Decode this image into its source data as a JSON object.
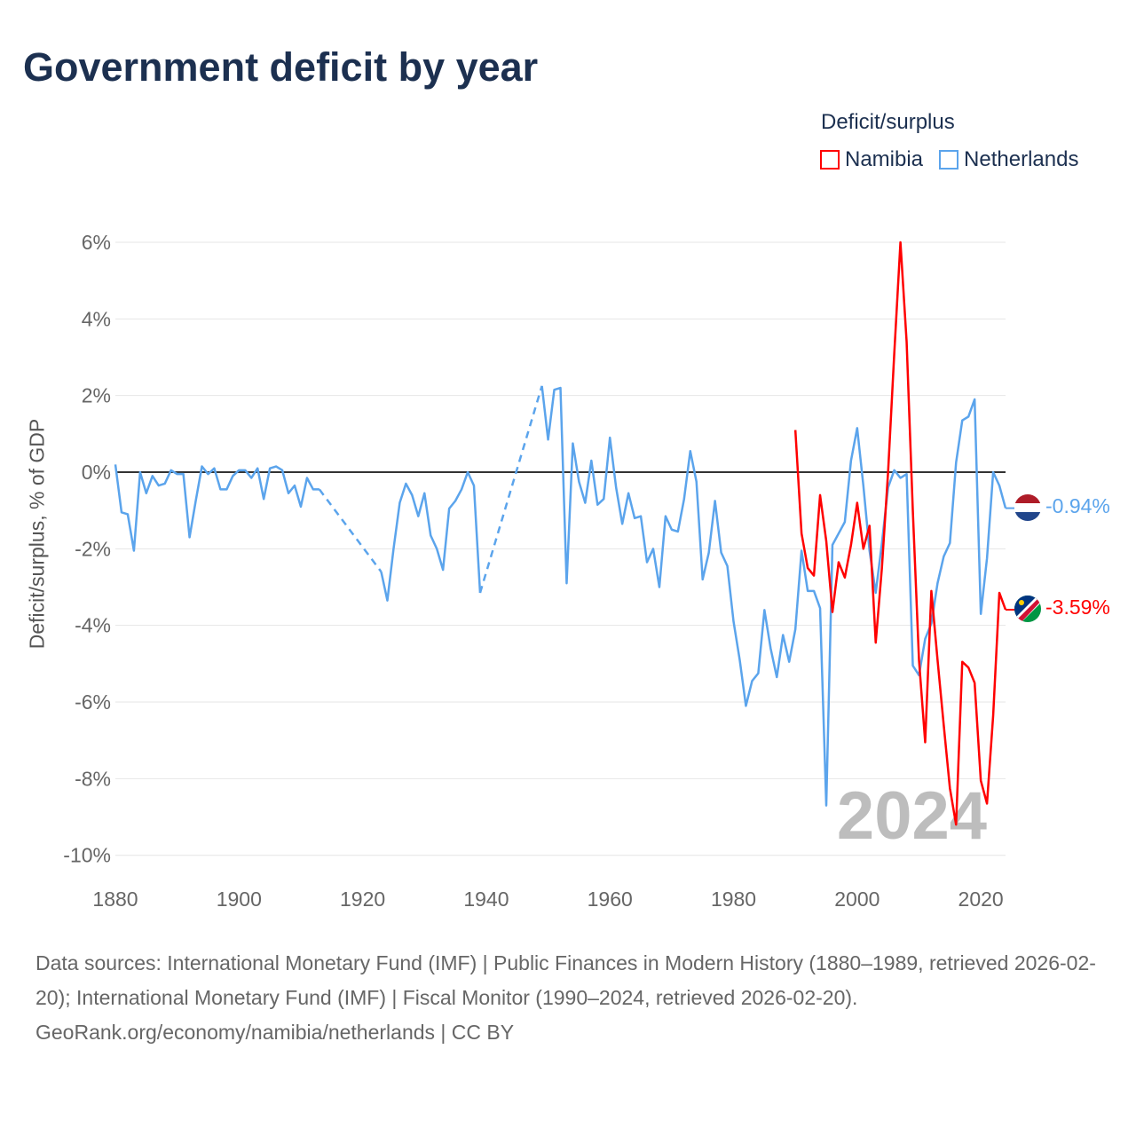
{
  "title": "Government deficit by year",
  "legend": {
    "title": "Deficit/surplus",
    "items": [
      {
        "name": "Namibia",
        "color": "#ff0000"
      },
      {
        "name": "Netherlands",
        "color": "#5ba4ec"
      }
    ]
  },
  "year_watermark": "2024",
  "end_labels": {
    "netherlands": "-0.94%",
    "namibia": "-3.59%"
  },
  "source": {
    "line": "Data sources: International Monetary Fund (IMF) | Public Finances in Modern History (1880–1989, retrieved 2026-02-20); International Monetary Fund (IMF) | Fiscal Monitor (1990–2024, retrieved 2026-02-20).",
    "credit": "GeoRank.org/economy/namibia/netherlands | CC BY"
  },
  "chart_data": {
    "type": "line",
    "title": "Government deficit by year",
    "xlabel": "",
    "ylabel": "Deficit/surplus, % of GDP",
    "xlim": [
      1880,
      2024
    ],
    "ylim": [
      -10,
      6
    ],
    "xticks": [
      "1880",
      "1900",
      "1920",
      "1940",
      "1960",
      "1980",
      "2000",
      "2020"
    ],
    "yticks": [
      "6%",
      "4%",
      "2%",
      "0%",
      "-2%",
      "-4%",
      "-6%",
      "-8%",
      "-10%"
    ],
    "ytick_values": [
      6,
      4,
      2,
      0,
      -2,
      -4,
      -6,
      -8,
      -10
    ],
    "grid": true,
    "legend_position": "top-right",
    "series": [
      {
        "name": "Netherlands",
        "color": "#5ba4ec",
        "points": [
          [
            1880,
            0.2
          ],
          [
            1881,
            -1.05
          ],
          [
            1882,
            -1.1
          ],
          [
            1883,
            -2.05
          ],
          [
            1884,
            0
          ],
          [
            1885,
            -0.55
          ],
          [
            1886,
            -0.1
          ],
          [
            1887,
            -0.35
          ],
          [
            1888,
            -0.3
          ],
          [
            1889,
            0.05
          ],
          [
            1890,
            -0.05
          ],
          [
            1891,
            -0.05
          ],
          [
            1892,
            -1.7
          ],
          [
            1893,
            -0.75
          ],
          [
            1894,
            0.15
          ],
          [
            1895,
            -0.05
          ],
          [
            1896,
            0.1
          ],
          [
            1897,
            -0.45
          ],
          [
            1898,
            -0.45
          ],
          [
            1899,
            -0.1
          ],
          [
            1900,
            0.05
          ],
          [
            1901,
            0.05
          ],
          [
            1902,
            -0.15
          ],
          [
            1903,
            0.1
          ],
          [
            1904,
            -0.7
          ],
          [
            1905,
            0.1
          ],
          [
            1906,
            0.15
          ],
          [
            1907,
            0.05
          ],
          [
            1908,
            -0.55
          ],
          [
            1909,
            -0.35
          ],
          [
            1910,
            -0.9
          ],
          [
            1911,
            -0.15
          ],
          [
            1912,
            -0.45
          ],
          [
            1913,
            -0.45
          ],
          [
            1923,
            -2.6
          ],
          [
            1924,
            -3.35
          ],
          [
            1925,
            -2.0
          ],
          [
            1926,
            -0.8
          ],
          [
            1927,
            -0.3
          ],
          [
            1928,
            -0.6
          ],
          [
            1929,
            -1.15
          ],
          [
            1930,
            -0.55
          ],
          [
            1931,
            -1.65
          ],
          [
            1932,
            -2.0
          ],
          [
            1933,
            -2.55
          ],
          [
            1934,
            -0.95
          ],
          [
            1935,
            -0.75
          ],
          [
            1936,
            -0.45
          ],
          [
            1937,
            0.0
          ],
          [
            1938,
            -0.35
          ],
          [
            1939,
            -3.15
          ],
          [
            1949,
            2.25
          ],
          [
            1950,
            0.85
          ],
          [
            1951,
            2.15
          ],
          [
            1952,
            2.2
          ],
          [
            1953,
            -2.9
          ],
          [
            1954,
            0.75
          ],
          [
            1955,
            -0.25
          ],
          [
            1956,
            -0.8
          ],
          [
            1957,
            0.3
          ],
          [
            1958,
            -0.85
          ],
          [
            1959,
            -0.7
          ],
          [
            1960,
            0.9
          ],
          [
            1961,
            -0.4
          ],
          [
            1962,
            -1.35
          ],
          [
            1963,
            -0.55
          ],
          [
            1964,
            -1.2
          ],
          [
            1965,
            -1.15
          ],
          [
            1966,
            -2.35
          ],
          [
            1967,
            -2.0
          ],
          [
            1968,
            -3.0
          ],
          [
            1969,
            -1.15
          ],
          [
            1970,
            -1.5
          ],
          [
            1971,
            -1.55
          ],
          [
            1972,
            -0.7
          ],
          [
            1973,
            0.55
          ],
          [
            1974,
            -0.25
          ],
          [
            1975,
            -2.8
          ],
          [
            1976,
            -2.1
          ],
          [
            1977,
            -0.75
          ],
          [
            1978,
            -2.1
          ],
          [
            1979,
            -2.45
          ],
          [
            1980,
            -3.9
          ],
          [
            1981,
            -4.9
          ],
          [
            1982,
            -6.1
          ],
          [
            1983,
            -5.45
          ],
          [
            1984,
            -5.25
          ],
          [
            1985,
            -3.6
          ],
          [
            1986,
            -4.6
          ],
          [
            1987,
            -5.35
          ],
          [
            1988,
            -4.25
          ],
          [
            1989,
            -4.95
          ],
          [
            1990,
            -4.1
          ],
          [
            1991,
            -2.05
          ],
          [
            1992,
            -3.1
          ],
          [
            1993,
            -3.1
          ],
          [
            1994,
            -3.55
          ],
          [
            1995,
            -8.7
          ],
          [
            1996,
            -1.9
          ],
          [
            1997,
            -1.6
          ],
          [
            1998,
            -1.3
          ],
          [
            1999,
            0.3
          ],
          [
            2000,
            1.15
          ],
          [
            2001,
            -0.35
          ],
          [
            2002,
            -2.05
          ],
          [
            2003,
            -3.15
          ],
          [
            2004,
            -1.85
          ],
          [
            2005,
            -0.4
          ],
          [
            2006,
            0.05
          ],
          [
            2007,
            -0.15
          ],
          [
            2008,
            -0.05
          ],
          [
            2009,
            -5.05
          ],
          [
            2010,
            -5.3
          ],
          [
            2011,
            -4.35
          ],
          [
            2012,
            -3.95
          ],
          [
            2013,
            -2.9
          ],
          [
            2014,
            -2.2
          ],
          [
            2015,
            -1.85
          ],
          [
            2016,
            0.25
          ],
          [
            2017,
            1.35
          ],
          [
            2018,
            1.45
          ],
          [
            2019,
            1.9
          ],
          [
            2020,
            -3.7
          ],
          [
            2021,
            -2.25
          ],
          [
            2022,
            0.0
          ],
          [
            2023,
            -0.35
          ],
          [
            2024,
            -0.94
          ]
        ]
      },
      {
        "name": "Namibia",
        "color": "#ff0000",
        "points": [
          [
            1990,
            1.1
          ],
          [
            1991,
            -1.6
          ],
          [
            1992,
            -2.5
          ],
          [
            1993,
            -2.7
          ],
          [
            1994,
            -0.6
          ],
          [
            1995,
            -1.8
          ],
          [
            1996,
            -3.65
          ],
          [
            1997,
            -2.35
          ],
          [
            1998,
            -2.75
          ],
          [
            1999,
            -1.9
          ],
          [
            2000,
            -0.8
          ],
          [
            2001,
            -2.0
          ],
          [
            2002,
            -1.4
          ],
          [
            2003,
            -4.45
          ],
          [
            2004,
            -2.5
          ],
          [
            2005,
            0.0
          ],
          [
            2006,
            3.1
          ],
          [
            2007,
            6.0
          ],
          [
            2008,
            3.4
          ],
          [
            2009,
            -1.0
          ],
          [
            2010,
            -4.9
          ],
          [
            2011,
            -7.05
          ],
          [
            2012,
            -3.1
          ],
          [
            2013,
            -4.9
          ],
          [
            2014,
            -6.6
          ],
          [
            2015,
            -8.25
          ],
          [
            2016,
            -9.2
          ],
          [
            2017,
            -4.95
          ],
          [
            2018,
            -5.1
          ],
          [
            2019,
            -5.5
          ],
          [
            2020,
            -8.05
          ],
          [
            2021,
            -8.65
          ],
          [
            2022,
            -6.35
          ],
          [
            2023,
            -3.15
          ],
          [
            2024,
            -3.59
          ]
        ]
      }
    ]
  }
}
